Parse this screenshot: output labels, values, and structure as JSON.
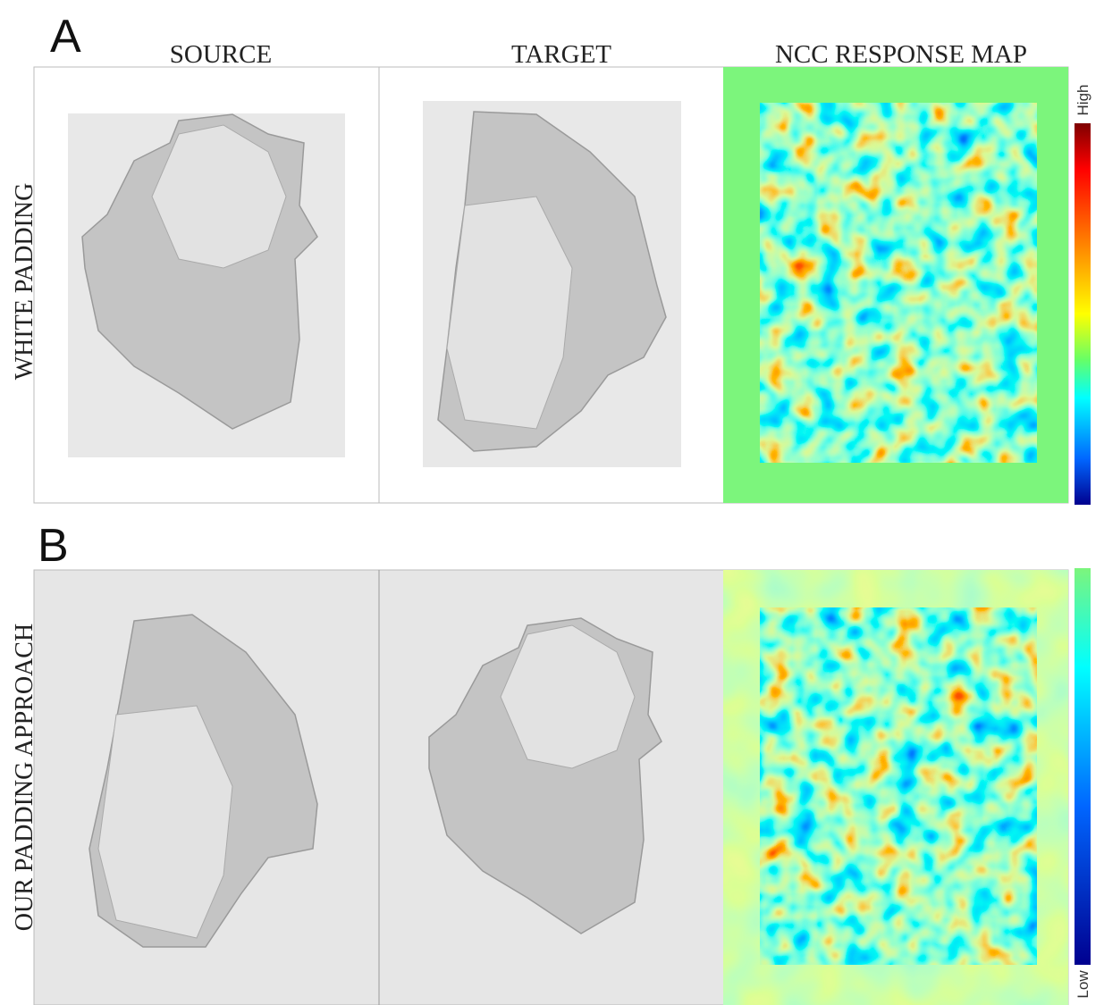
{
  "panels": [
    {
      "label": "A",
      "row_label": "WHITE PADDING"
    },
    {
      "label": "B",
      "row_label": "OUR PADDING APPROACH"
    }
  ],
  "columns": [
    "SOURCE",
    "TARGET",
    "NCC RESPONSE MAP"
  ],
  "colorbar": {
    "high": "High",
    "low": "Low"
  }
}
